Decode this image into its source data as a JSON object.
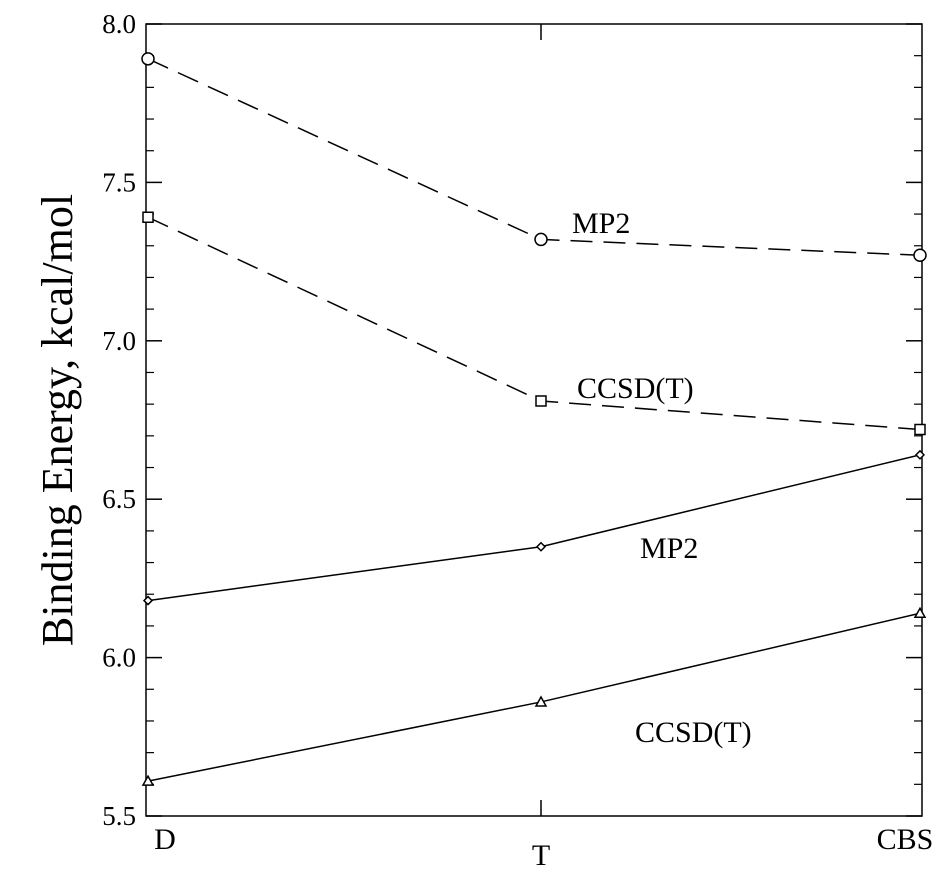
{
  "chart_data": {
    "type": "line",
    "title": "",
    "xlabel": "",
    "ylabel": "Binding Energy, kcal/mol",
    "categories": [
      "D",
      "T",
      "CBS"
    ],
    "ylim": [
      5.5,
      8.0
    ],
    "yticks": [
      "5.5",
      "6.0",
      "6.5",
      "7.0",
      "7.5",
      "8.0"
    ],
    "grid": false,
    "series": [
      {
        "name": "MP2",
        "values": [
          7.89,
          7.32,
          7.27
        ],
        "line": "dashed",
        "marker": "circle"
      },
      {
        "name": "CCSD(T)",
        "values": [
          7.39,
          6.81,
          6.72
        ],
        "line": "dashed",
        "marker": "square"
      },
      {
        "name": "MP2",
        "values": [
          6.18,
          6.35,
          6.64
        ],
        "line": "solid",
        "marker": "diamond"
      },
      {
        "name": "CCSD(T)",
        "values": [
          5.61,
          5.86,
          6.14
        ],
        "line": "solid",
        "marker": "triangle"
      }
    ]
  }
}
